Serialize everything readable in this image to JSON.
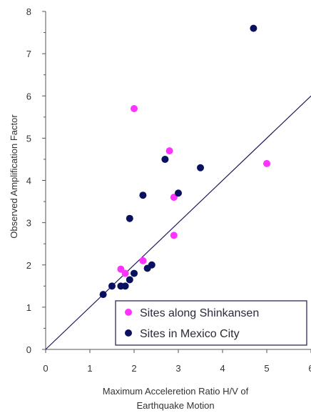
{
  "chart_data": {
    "type": "scatter",
    "title": "",
    "xlabel_lines": [
      "Maximum Acceleretion Ratio H/V of",
      "Earthquake Motion"
    ],
    "ylabel": "Observed Amplification Factor",
    "xlim": [
      0,
      6
    ],
    "ylim": [
      0,
      8
    ],
    "xticks": [
      "0",
      "1",
      "2",
      "3",
      "4",
      "5",
      "6"
    ],
    "yticks": [
      "0",
      "1",
      "2",
      "3",
      "4",
      "5",
      "6",
      "7",
      "8"
    ],
    "grid": false,
    "legend_position": "bottom-right",
    "reference_line": {
      "from": [
        0,
        0
      ],
      "to": [
        6,
        6
      ]
    },
    "series": [
      {
        "name": "Sites along Shinkansen",
        "color": "#ff33ff",
        "points": [
          [
            2.0,
            5.7
          ],
          [
            2.8,
            4.7
          ],
          [
            5.0,
            4.4
          ],
          [
            2.9,
            3.6
          ],
          [
            2.9,
            2.7
          ],
          [
            2.2,
            2.1
          ],
          [
            1.7,
            1.9
          ],
          [
            1.8,
            1.8
          ]
        ]
      },
      {
        "name": "Sites in Mexico City",
        "color": "#0a1060",
        "points": [
          [
            4.7,
            7.6
          ],
          [
            2.7,
            4.5
          ],
          [
            3.5,
            4.3
          ],
          [
            2.2,
            3.65
          ],
          [
            3.0,
            3.7
          ],
          [
            1.9,
            3.1
          ],
          [
            2.4,
            2.0
          ],
          [
            2.3,
            1.92
          ],
          [
            2.0,
            1.8
          ],
          [
            1.9,
            1.65
          ],
          [
            1.7,
            1.5
          ],
          [
            1.8,
            1.5
          ],
          [
            1.5,
            1.5
          ],
          [
            1.3,
            1.3
          ]
        ]
      }
    ]
  }
}
